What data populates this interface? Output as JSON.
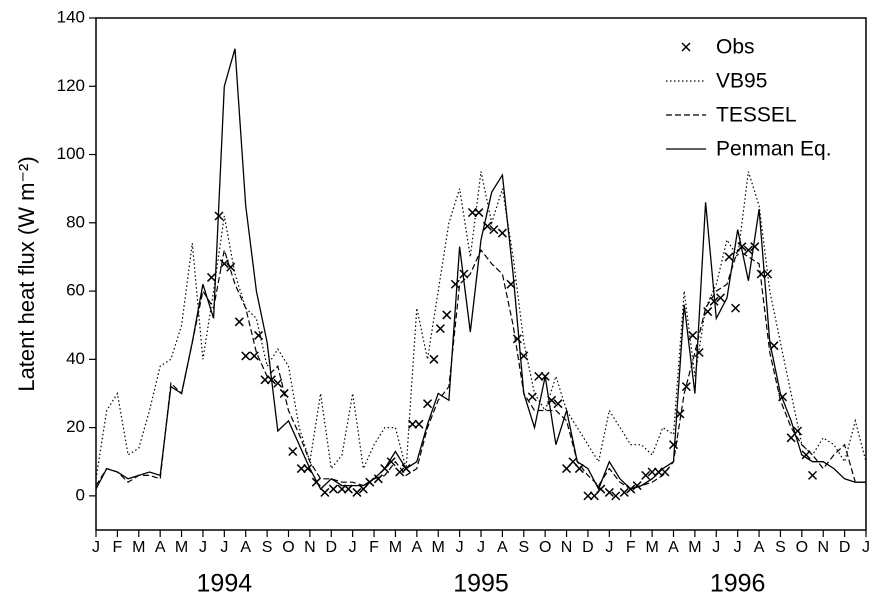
{
  "chart_data": {
    "type": "line",
    "y_label": "Latent heat flux (W m⁻²)",
    "year_labels": [
      "1994",
      "1995",
      "1996"
    ],
    "x": [
      0,
      0.5,
      1,
      1.5,
      2,
      2.5,
      3,
      3.5,
      4,
      4.5,
      5,
      5.5,
      6,
      6.5,
      7,
      7.5,
      8,
      8.5,
      9,
      9.5,
      10,
      10.5,
      11,
      11.5,
      12,
      12.5,
      13,
      13.5,
      14,
      14.5,
      15,
      15.5,
      16,
      16.5,
      17,
      17.5,
      18,
      18.5,
      19,
      19.5,
      20,
      20.5,
      21,
      21.5,
      22,
      22.5,
      23,
      23.5,
      24,
      24.5,
      25,
      25.5,
      26,
      26.5,
      27,
      27.5,
      28,
      28.5,
      29,
      29.5,
      30,
      30.5,
      31,
      31.5,
      32,
      32.5,
      33,
      33.5,
      34,
      34.5,
      35,
      35.5,
      36
    ],
    "xlim": [
      0,
      36
    ],
    "ylim": [
      -10,
      140
    ],
    "yticks": [
      0,
      20,
      40,
      60,
      80,
      100,
      120,
      140
    ],
    "xticks": [
      {
        "value": 0,
        "label": "J"
      },
      {
        "value": 1,
        "label": "F"
      },
      {
        "value": 2,
        "label": "M"
      },
      {
        "value": 3,
        "label": "A"
      },
      {
        "value": 4,
        "label": "M"
      },
      {
        "value": 5,
        "label": "J"
      },
      {
        "value": 6,
        "label": "J"
      },
      {
        "value": 7,
        "label": "A"
      },
      {
        "value": 8,
        "label": "S"
      },
      {
        "value": 9,
        "label": "O"
      },
      {
        "value": 10,
        "label": "N"
      },
      {
        "value": 11,
        "label": "D"
      },
      {
        "value": 12,
        "label": "J"
      },
      {
        "value": 13,
        "label": "F"
      },
      {
        "value": 14,
        "label": "M"
      },
      {
        "value": 15,
        "label": "A"
      },
      {
        "value": 16,
        "label": "M"
      },
      {
        "value": 17,
        "label": "J"
      },
      {
        "value": 18,
        "label": "J"
      },
      {
        "value": 19,
        "label": "A"
      },
      {
        "value": 20,
        "label": "S"
      },
      {
        "value": 21,
        "label": "O"
      },
      {
        "value": 22,
        "label": "N"
      },
      {
        "value": 23,
        "label": "D"
      },
      {
        "value": 24,
        "label": "J"
      },
      {
        "value": 25,
        "label": "F"
      },
      {
        "value": 26,
        "label": "M"
      },
      {
        "value": 27,
        "label": "A"
      },
      {
        "value": 28,
        "label": "M"
      },
      {
        "value": 29,
        "label": "J"
      },
      {
        "value": 30,
        "label": "J"
      },
      {
        "value": 31,
        "label": "A"
      },
      {
        "value": 32,
        "label": "S"
      },
      {
        "value": 33,
        "label": "O"
      },
      {
        "value": 34,
        "label": "N"
      },
      {
        "value": 35,
        "label": "D"
      },
      {
        "value": 36,
        "label": "J"
      }
    ],
    "grid": false,
    "legend": "upper right",
    "series": [
      {
        "name": "Obs",
        "color": "#000000",
        "style": "markers",
        "x": [
          5.4,
          5.75,
          6,
          6.3,
          6.7,
          7,
          7.4,
          7.6,
          7.9,
          8.2,
          8.5,
          8.8,
          9.2,
          9.6,
          9.9,
          10.3,
          10.7,
          11.1,
          11.5,
          11.8,
          12.2,
          12.5,
          12.8,
          13.2,
          13.5,
          13.8,
          14.2,
          14.5,
          14.8,
          15.1,
          15.5,
          15.8,
          16.1,
          16.4,
          16.8,
          17.2,
          17.6,
          17.9,
          18.3,
          18.6,
          19,
          19.4,
          19.7,
          20,
          20.4,
          20.7,
          21,
          21.3,
          21.6,
          22,
          22.3,
          22.6,
          23,
          23.3,
          23.6,
          24,
          24.3,
          24.7,
          25,
          25.3,
          25.7,
          26,
          26.3,
          26.6,
          27,
          27.3,
          27.6,
          27.9,
          28.2,
          28.6,
          28.9,
          29.2,
          29.6,
          29.9,
          30.2,
          30.5,
          30.8,
          31.1,
          31.4,
          31.7,
          32.1,
          32.5,
          32.8,
          33.2,
          33.5
        ],
        "values": [
          64,
          82,
          68,
          67,
          51,
          41,
          41,
          47,
          34,
          34,
          33,
          30,
          13,
          8,
          8,
          4,
          1,
          2,
          2,
          2,
          1,
          2,
          4,
          5,
          8,
          10,
          7,
          8,
          21,
          21,
          27,
          40,
          49,
          53,
          62,
          65,
          83,
          83,
          79,
          78,
          77,
          62,
          46,
          41,
          29,
          35,
          35,
          28,
          27,
          8,
          10,
          8,
          0,
          0,
          2,
          1,
          0,
          1,
          2,
          3,
          6,
          7,
          7,
          7,
          15,
          24,
          32,
          47,
          42,
          54,
          57,
          58,
          70,
          55,
          73,
          72,
          73,
          65,
          65,
          44,
          29,
          17,
          19,
          12,
          6
        ]
      },
      {
        "name": "VB95",
        "color": "#000000",
        "style": "dotted",
        "values": [
          5,
          25,
          30,
          12,
          14,
          25,
          38,
          40,
          50,
          74,
          40,
          60,
          82,
          65,
          55,
          52,
          38,
          43,
          38,
          20,
          10,
          30,
          8,
          12,
          30,
          8,
          15,
          20,
          20,
          8,
          55,
          40,
          60,
          80,
          90,
          70,
          95,
          80,
          90,
          70,
          45,
          30,
          25,
          35,
          25,
          20,
          15,
          10,
          25,
          20,
          15,
          15,
          12,
          20,
          18,
          60,
          35,
          55,
          62,
          75,
          70,
          95,
          85,
          60,
          45,
          30,
          15,
          12,
          17,
          15,
          10,
          22,
          10
        ]
      },
      {
        "name": "TESSEL",
        "color": "#000000",
        "style": "dashed",
        "values": [
          3,
          8,
          7,
          4,
          6,
          6,
          5,
          33,
          30,
          45,
          60,
          55,
          72,
          62,
          55,
          42,
          35,
          38,
          25,
          18,
          10,
          5,
          5,
          4,
          4,
          3,
          5,
          6,
          10,
          6,
          8,
          20,
          28,
          32,
          62,
          65,
          72,
          68,
          65,
          50,
          30,
          25,
          25,
          25,
          22,
          10,
          6,
          3,
          8,
          4,
          2,
          3,
          4,
          6,
          10,
          30,
          42,
          55,
          60,
          62,
          72,
          70,
          68,
          42,
          28,
          20,
          15,
          12,
          8,
          12,
          15,
          4,
          4
        ]
      },
      {
        "name": "Penman Eq.",
        "color": "#000000",
        "style": "solid",
        "values": [
          2,
          8,
          7,
          5,
          6,
          7,
          6,
          32,
          30,
          45,
          62,
          52,
          120,
          131,
          85,
          60,
          45,
          19,
          22,
          15,
          8,
          2,
          5,
          3,
          3,
          3,
          5,
          8,
          13,
          8,
          10,
          21,
          30,
          28,
          73,
          48,
          75,
          89,
          94,
          65,
          30,
          20,
          35,
          15,
          25,
          10,
          8,
          2,
          10,
          5,
          2,
          3,
          5,
          8,
          10,
          56,
          30,
          86,
          52,
          58,
          78,
          63,
          84,
          45,
          30,
          22,
          12,
          10,
          10,
          8,
          5,
          4,
          4
        ]
      }
    ]
  }
}
